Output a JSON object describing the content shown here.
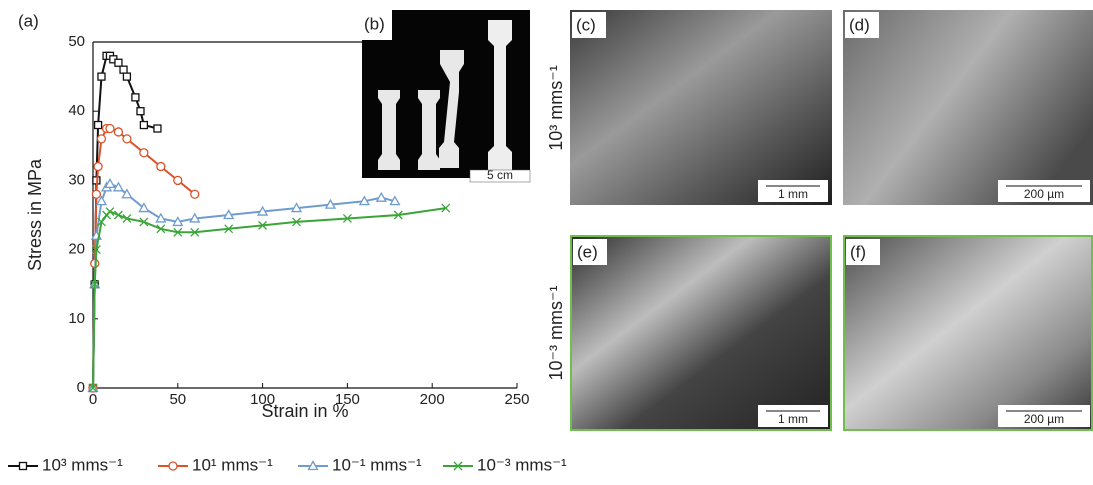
{
  "chart_data": {
    "type": "line",
    "panel_labels": [
      "(a)",
      "(b)",
      "(c)",
      "(d)",
      "(e)",
      "(f)"
    ],
    "x_label": "Strain in %",
    "y_label": "Stress in MPa",
    "xlim": [
      0,
      250
    ],
    "xticks": [
      0,
      50,
      100,
      150,
      200,
      250
    ],
    "ylim": [
      0,
      50
    ],
    "yticks": [
      0,
      10,
      20,
      30,
      40,
      50
    ],
    "series": [
      {
        "name": "10³ mms⁻¹",
        "color": "#111111",
        "marker": "square",
        "x": [
          0,
          1,
          2,
          3,
          5,
          8,
          10,
          12,
          15,
          18,
          20,
          25,
          28,
          30,
          38
        ],
        "values": [
          0,
          15,
          30,
          38,
          45,
          48,
          48,
          47.5,
          47,
          46,
          45,
          42,
          40,
          38,
          37.5
        ]
      },
      {
        "name": "10¹ mms⁻¹",
        "color": "#d9532b",
        "marker": "circle",
        "x": [
          0,
          1,
          2,
          3,
          5,
          8,
          10,
          15,
          20,
          30,
          40,
          50,
          60
        ],
        "values": [
          0,
          18,
          28,
          32,
          36,
          37.5,
          37.5,
          37,
          36,
          34,
          32,
          30,
          28
        ]
      },
      {
        "name": "10⁻¹ mms⁻¹",
        "color": "#6f9ccf",
        "marker": "triangle",
        "x": [
          0,
          1,
          2,
          5,
          8,
          10,
          15,
          20,
          30,
          40,
          50,
          60,
          80,
          100,
          120,
          140,
          160,
          170,
          178
        ],
        "values": [
          0,
          15,
          22,
          27,
          29,
          29.5,
          29,
          28,
          26,
          24.5,
          24,
          24.5,
          25,
          25.5,
          26,
          26.5,
          27,
          27.5,
          27
        ]
      },
      {
        "name": "10⁻³ mms⁻¹",
        "color": "#3aa538",
        "marker": "x",
        "x": [
          0,
          1,
          2,
          5,
          8,
          10,
          15,
          20,
          30,
          40,
          50,
          60,
          80,
          100,
          120,
          150,
          180,
          208
        ],
        "values": [
          0,
          15,
          20,
          24,
          25,
          25.5,
          25,
          24.5,
          24,
          23,
          22.5,
          22.5,
          23,
          23.5,
          24,
          24.5,
          25,
          26
        ]
      }
    ],
    "inset_scale": "5 cm",
    "row_labels": [
      "10³ mms⁻¹",
      "10⁻³ mms⁻¹"
    ],
    "image_scales": [
      "1 mm",
      "200 µm",
      "1 mm",
      "200 µm"
    ]
  }
}
